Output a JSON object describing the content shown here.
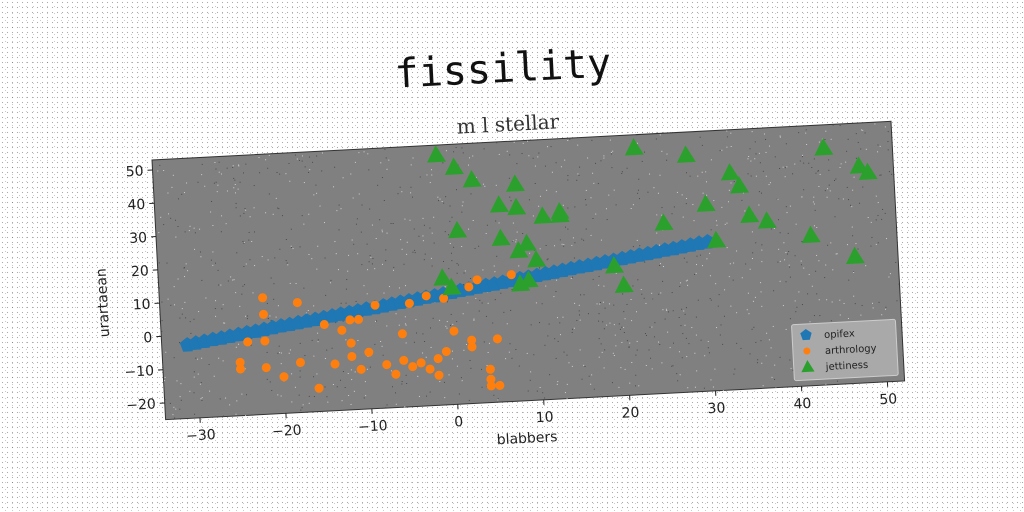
{
  "chart_data": {
    "type": "scatter",
    "title": "fissility",
    "subtitle": "m l stellar",
    "xlabel": "blabbers",
    "ylabel": "urartaean",
    "xlim": [
      -34,
      52
    ],
    "ylim": [
      -25,
      53
    ],
    "xticks": [
      -30,
      -20,
      -10,
      0,
      10,
      20,
      30,
      40,
      50
    ],
    "yticks": [
      -20,
      -10,
      0,
      10,
      20,
      30,
      40,
      50
    ],
    "grid": false,
    "legend_position": "lower-right",
    "colors": {
      "plot_bg": "#808080",
      "opifex": "#1f77b4",
      "arthrology": "#ff7f0e",
      "jettiness": "#2ca02c"
    },
    "series": [
      {
        "name": "opifex",
        "marker": "pentagon",
        "points": [
          [
            -31,
            -3
          ],
          [
            -30,
            -2.6
          ],
          [
            -29,
            -2.2
          ],
          [
            -28,
            -1.8
          ],
          [
            -27,
            -1.5
          ],
          [
            -26,
            -1.1
          ],
          [
            -25,
            -0.7
          ],
          [
            -24,
            -0.3
          ],
          [
            -23,
            0
          ],
          [
            -22,
            0.4
          ],
          [
            -21,
            0.8
          ],
          [
            -20,
            1.2
          ],
          [
            -19,
            1.5
          ],
          [
            -18,
            1.9
          ],
          [
            -17,
            2.3
          ],
          [
            -16,
            2.6
          ],
          [
            -15,
            3
          ],
          [
            -14,
            3.4
          ],
          [
            -13,
            3.8
          ],
          [
            -12,
            4.1
          ],
          [
            -11,
            4.5
          ],
          [
            -10,
            4.9
          ],
          [
            -9,
            5.2
          ],
          [
            -8,
            5.6
          ],
          [
            -7,
            6
          ],
          [
            -6,
            6.4
          ],
          [
            -5,
            6.7
          ],
          [
            -4,
            7.1
          ],
          [
            -3,
            7.5
          ],
          [
            -2,
            7.8
          ],
          [
            -1,
            8.2
          ],
          [
            0,
            8.6
          ],
          [
            1,
            9
          ],
          [
            2,
            9.3
          ],
          [
            3,
            9.7
          ],
          [
            4,
            10.1
          ],
          [
            5,
            10.4
          ],
          [
            6,
            10.8
          ],
          [
            7,
            11.2
          ],
          [
            8,
            11.6
          ],
          [
            9,
            11.9
          ],
          [
            10,
            12.3
          ],
          [
            11,
            12.7
          ],
          [
            12,
            13
          ],
          [
            13,
            13.4
          ],
          [
            14,
            13.8
          ],
          [
            15,
            14.2
          ],
          [
            16,
            14.5
          ],
          [
            17,
            14.9
          ],
          [
            18,
            15.3
          ],
          [
            19,
            15.6
          ],
          [
            20,
            16
          ],
          [
            21,
            16.4
          ],
          [
            22,
            16.8
          ],
          [
            23,
            17.1
          ],
          [
            24,
            17.5
          ],
          [
            25,
            17.9
          ],
          [
            26,
            18.2
          ],
          [
            27,
            18.6
          ],
          [
            28,
            19
          ],
          [
            29,
            19.4
          ],
          [
            30,
            19.7
          ]
        ]
      },
      {
        "name": "arthrology",
        "marker": "circle",
        "points": [
          [
            -22,
            10
          ],
          [
            -18,
            8
          ],
          [
            -22,
            5
          ],
          [
            -15,
            1
          ],
          [
            -12,
            2
          ],
          [
            -11,
            2
          ],
          [
            -9,
            6
          ],
          [
            -5,
            6
          ],
          [
            -3,
            8
          ],
          [
            -1,
            7
          ],
          [
            2,
            10
          ],
          [
            3,
            12
          ],
          [
            7,
            13
          ],
          [
            -24,
            -3
          ],
          [
            -22,
            -3
          ],
          [
            -13,
            -1
          ],
          [
            -12,
            -5
          ],
          [
            -10,
            -8
          ],
          [
            -8,
            -12
          ],
          [
            -7,
            -15
          ],
          [
            -6,
            -11
          ],
          [
            -5,
            -13
          ],
          [
            -4,
            -12
          ],
          [
            -3,
            -14
          ],
          [
            -2,
            -16
          ],
          [
            -1,
            -9
          ],
          [
            0,
            -3
          ],
          [
            -25,
            -9
          ],
          [
            -25,
            -11
          ],
          [
            -22,
            -11
          ],
          [
            -20,
            -14
          ],
          [
            -18,
            -10
          ],
          [
            -16,
            -18
          ],
          [
            -14,
            -11
          ],
          [
            -12,
            -9
          ],
          [
            -11,
            -13
          ],
          [
            -6,
            -3
          ],
          [
            -2,
            -11
          ],
          [
            2,
            -6
          ],
          [
            2,
            -8
          ],
          [
            5,
            -6
          ],
          [
            4,
            -15
          ],
          [
            4,
            -18
          ],
          [
            4,
            -20
          ],
          [
            5,
            -20
          ]
        ]
      },
      {
        "name": "jettiness",
        "marker": "triangle",
        "points": [
          [
            -1,
            50
          ],
          [
            1,
            46
          ],
          [
            3,
            42
          ],
          [
            6,
            34
          ],
          [
            8,
            40
          ],
          [
            1,
            27
          ],
          [
            6,
            24
          ],
          [
            8,
            20
          ],
          [
            9,
            22
          ],
          [
            10,
            17
          ],
          [
            8,
            33
          ],
          [
            11,
            30
          ],
          [
            13,
            31
          ],
          [
            13,
            30
          ],
          [
            -1,
            13
          ],
          [
            0,
            10
          ],
          [
            8,
            10
          ],
          [
            9,
            11
          ],
          [
            19,
            14
          ],
          [
            20,
            8
          ],
          [
            22,
            49
          ],
          [
            25,
            26
          ],
          [
            28,
            46
          ],
          [
            30,
            31
          ],
          [
            31,
            20
          ],
          [
            33,
            40
          ],
          [
            34,
            36
          ],
          [
            35,
            27
          ],
          [
            37,
            25
          ],
          [
            42,
            20
          ],
          [
            44,
            46
          ],
          [
            48,
            40
          ],
          [
            49,
            38
          ],
          [
            47,
            13
          ]
        ]
      }
    ]
  }
}
